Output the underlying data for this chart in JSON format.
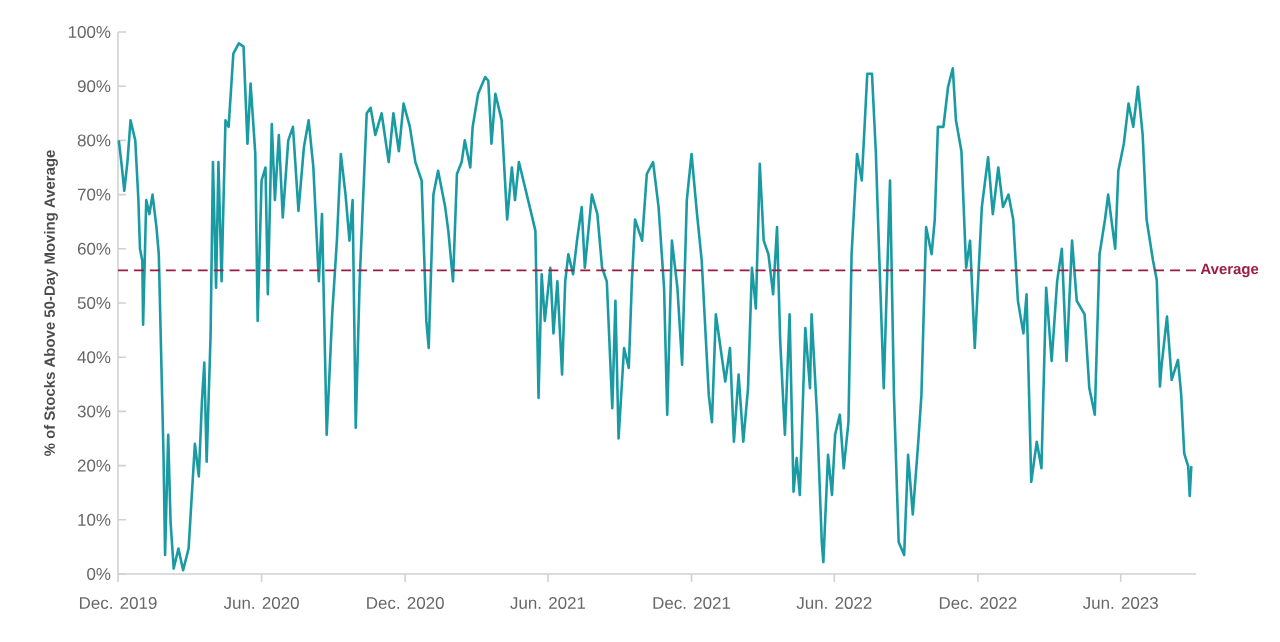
{
  "chart_data": {
    "type": "line",
    "ylabel": "% of Stocks Above 50-Day Moving Average",
    "xlim": [
      "2019-12-01",
      "2023-09-05"
    ],
    "xticks": [
      {
        "value": "2019-12-01",
        "label": "Dec. 2019"
      },
      {
        "value": "2020-06-01",
        "label": "Jun. 2020"
      },
      {
        "value": "2020-12-01",
        "label": "Dec. 2020"
      },
      {
        "value": "2021-06-01",
        "label": "Jun. 2021"
      },
      {
        "value": "2021-12-01",
        "label": "Dec. 2021"
      },
      {
        "value": "2022-06-01",
        "label": "Jun. 2022"
      },
      {
        "value": "2022-12-01",
        "label": "Dec. 2022"
      },
      {
        "value": "2023-06-01",
        "label": "Jun. 2023"
      }
    ],
    "ylim": [
      0,
      100
    ],
    "yticks": [
      {
        "value": 0,
        "label": "0%"
      },
      {
        "value": 10,
        "label": "10%"
      },
      {
        "value": 20,
        "label": "20%"
      },
      {
        "value": 30,
        "label": "30%"
      },
      {
        "value": 40,
        "label": "40%"
      },
      {
        "value": 50,
        "label": "50%"
      },
      {
        "value": 60,
        "label": "60%"
      },
      {
        "value": 70,
        "label": "70%"
      },
      {
        "value": 80,
        "label": "80%"
      },
      {
        "value": 90,
        "label": "90%"
      },
      {
        "value": 100,
        "label": "100%"
      }
    ],
    "grid": false,
    "marker": "none",
    "line_style": "solid",
    "ref_lines": [
      {
        "axis": "y",
        "value": 56,
        "label": "Average",
        "color": "#9b1b42",
        "line_style": "dashed"
      }
    ],
    "series": [
      {
        "color": "#1a9ba3",
        "x": [
          "2019-12-02",
          "2019-12-06",
          "2019-12-09",
          "2019-12-13",
          "2019-12-17",
          "2019-12-23",
          "2019-12-27",
          "2019-12-29",
          "2020-01-01",
          "2020-01-02",
          "2020-01-06",
          "2020-01-10",
          "2020-01-14",
          "2020-01-19",
          "2020-01-22",
          "2020-01-28",
          "2020-01-30",
          "2020-02-03",
          "2020-02-06",
          "2020-02-10",
          "2020-02-16",
          "2020-02-22",
          "2020-02-29",
          "2020-03-08",
          "2020-03-13",
          "2020-03-17",
          "2020-03-20",
          "2020-03-23",
          "2020-03-28",
          "2020-03-31",
          "2020-04-04",
          "2020-04-07",
          "2020-04-11",
          "2020-04-16",
          "2020-04-20",
          "2020-04-26",
          "2020-05-03",
          "2020-05-09",
          "2020-05-14",
          "2020-05-18",
          "2020-05-24",
          "2020-05-27",
          "2020-06-01",
          "2020-06-06",
          "2020-06-09",
          "2020-06-14",
          "2020-06-18",
          "2020-06-23",
          "2020-06-28",
          "2020-07-05",
          "2020-07-11",
          "2020-07-18",
          "2020-07-25",
          "2020-07-31",
          "2020-08-06",
          "2020-08-13",
          "2020-08-17",
          "2020-08-23",
          "2020-08-30",
          "2020-09-05",
          "2020-09-10",
          "2020-09-16",
          "2020-09-21",
          "2020-09-25",
          "2020-09-29",
          "2020-10-04",
          "2020-10-13",
          "2020-10-18",
          "2020-10-24",
          "2020-11-01",
          "2020-11-10",
          "2020-11-16",
          "2020-11-23",
          "2020-11-29",
          "2020-12-07",
          "2020-12-14",
          "2020-12-22",
          "2020-12-28",
          "2020-12-31",
          "2021-01-06",
          "2021-01-12",
          "2021-01-21",
          "2021-01-25",
          "2021-01-31",
          "2021-02-05",
          "2021-02-11",
          "2021-02-15",
          "2021-02-22",
          "2021-02-25",
          "2021-03-04",
          "2021-03-13",
          "2021-03-17",
          "2021-03-21",
          "2021-03-26",
          "2021-04-03",
          "2021-04-10",
          "2021-04-16",
          "2021-04-20",
          "2021-04-25",
          "2021-05-05",
          "2021-05-11",
          "2021-05-16",
          "2021-05-20",
          "2021-05-24",
          "2021-05-28",
          "2021-06-04",
          "2021-06-08",
          "2021-06-13",
          "2021-06-19",
          "2021-06-23",
          "2021-06-27",
          "2021-07-03",
          "2021-07-08",
          "2021-07-14",
          "2021-07-18",
          "2021-07-27",
          "2021-08-03",
          "2021-08-09",
          "2021-08-15",
          "2021-08-22",
          "2021-08-26",
          "2021-08-30",
          "2021-09-06",
          "2021-09-12",
          "2021-09-16",
          "2021-09-20",
          "2021-09-29",
          "2021-10-05",
          "2021-10-13",
          "2021-10-20",
          "2021-10-27",
          "2021-10-31",
          "2021-11-06",
          "2021-11-13",
          "2021-11-19",
          "2021-11-25",
          "2021-12-01",
          "2021-12-08",
          "2021-12-14",
          "2021-12-23",
          "2021-12-27",
          "2022-01-01",
          "2022-01-07",
          "2022-01-13",
          "2022-01-19",
          "2022-01-24",
          "2022-01-30",
          "2022-02-05",
          "2022-02-11",
          "2022-02-16",
          "2022-02-21",
          "2022-02-26",
          "2022-03-03",
          "2022-03-09",
          "2022-03-15",
          "2022-03-20",
          "2022-03-24",
          "2022-03-30",
          "2022-04-05",
          "2022-04-10",
          "2022-04-14",
          "2022-04-18",
          "2022-04-25",
          "2022-05-01",
          "2022-05-03",
          "2022-05-10",
          "2022-05-16",
          "2022-05-18",
          "2022-05-24",
          "2022-05-29",
          "2022-06-02",
          "2022-06-08",
          "2022-06-13",
          "2022-06-19",
          "2022-06-23",
          "2022-06-30",
          "2022-07-06",
          "2022-07-13",
          "2022-07-19",
          "2022-07-24",
          "2022-07-27",
          "2022-08-03",
          "2022-08-11",
          "2022-08-16",
          "2022-08-22",
          "2022-08-29",
          "2022-09-03",
          "2022-09-09",
          "2022-09-16",
          "2022-09-20",
          "2022-09-26",
          "2022-10-03",
          "2022-10-07",
          "2022-10-11",
          "2022-10-18",
          "2022-10-24",
          "2022-10-30",
          "2022-11-03",
          "2022-11-10",
          "2022-11-16",
          "2022-11-21",
          "2022-11-27",
          "2022-12-06",
          "2022-12-14",
          "2022-12-20",
          "2022-12-27",
          "2023-01-02",
          "2023-01-09",
          "2023-01-15",
          "2023-01-21",
          "2023-01-28",
          "2023-02-01",
          "2023-02-07",
          "2023-02-14",
          "2023-02-20",
          "2023-02-26",
          "2023-03-05",
          "2023-03-12",
          "2023-03-18",
          "2023-03-24",
          "2023-03-31",
          "2023-04-06",
          "2023-04-16",
          "2023-04-22",
          "2023-04-29",
          "2023-05-05",
          "2023-05-12",
          "2023-05-16",
          "2023-05-25",
          "2023-05-29",
          "2023-06-05",
          "2023-06-11",
          "2023-06-17",
          "2023-06-23",
          "2023-06-29",
          "2023-07-04",
          "2023-07-12",
          "2023-07-17",
          "2023-07-19",
          "2023-07-21",
          "2023-07-23",
          "2023-07-30",
          "2023-08-05",
          "2023-08-13",
          "2023-08-17",
          "2023-08-21",
          "2023-08-26",
          "2023-08-28",
          "2023-08-30"
        ],
        "values": [
          80,
          75,
          70.7,
          76,
          83.7,
          80,
          69,
          60,
          57.8,
          46,
          69,
          66.4,
          70,
          64,
          59,
          22,
          3.5,
          25.7,
          9.6,
          1,
          4.7,
          0.7,
          4.7,
          24,
          18,
          31.9,
          39,
          20.7,
          44,
          76,
          52.8,
          76,
          54,
          83.7,
          82.5,
          96,
          97.9,
          97.3,
          79.4,
          90.5,
          77.5,
          46.7,
          72.6,
          75,
          51.6,
          83,
          69,
          81,
          65.8,
          80,
          82.5,
          67,
          78.8,
          83.7,
          75,
          54,
          66.4,
          25.7,
          47.9,
          61.5,
          77.5,
          70,
          61.5,
          69,
          27,
          54,
          85,
          86,
          81,
          85,
          76,
          85,
          78,
          86.8,
          82.5,
          76,
          72.6,
          46.7,
          41.7,
          70,
          74.4,
          67.7,
          63.3,
          54,
          73.8,
          76,
          80,
          75,
          82.5,
          88.6,
          91.7,
          91,
          79.4,
          88.6,
          83.7,
          65.4,
          75,
          69,
          76,
          70,
          66.4,
          63.3,
          32.5,
          55.3,
          46.7,
          56.5,
          44.4,
          54,
          36.8,
          54,
          59,
          55.3,
          61.5,
          67.7,
          56.5,
          70,
          66.4,
          56.5,
          54,
          30.6,
          50.4,
          25,
          41.7,
          38,
          54,
          65.4,
          61.5,
          73.8,
          76,
          67.7,
          52.8,
          29.4,
          61.5,
          52.8,
          38.6,
          69,
          77.5,
          66.4,
          57.8,
          33,
          28,
          47.9,
          41.7,
          35.5,
          41.7,
          24.4,
          36.8,
          24.4,
          34.3,
          56.5,
          49,
          75.7,
          61.5,
          59,
          51.6,
          64,
          43,
          25.7,
          47.9,
          15.2,
          21.4,
          14.6,
          45.4,
          34.3,
          47.9,
          29.4,
          5.9,
          2.2,
          22,
          14.6,
          25.7,
          29.4,
          19.5,
          28,
          59,
          77.5,
          72.6,
          92.3,
          92.3,
          77.5,
          64,
          34.3,
          72.6,
          33,
          5.9,
          3.5,
          22,
          11,
          24.4,
          33,
          64,
          59,
          65.4,
          82.5,
          82.5,
          89.9,
          93.3,
          83.7,
          78,
          56.5,
          61.5,
          41.7,
          67.7,
          76.9,
          66.4,
          75,
          67.7,
          70,
          65.4,
          50.4,
          44.4,
          51.6,
          17,
          24.4,
          19.5,
          52.8,
          39.3,
          54,
          60,
          39.3,
          61.5,
          50.4,
          47.9,
          34.3,
          29.4,
          59,
          65.4,
          70,
          60,
          74.4,
          79.4,
          86.8,
          82.5,
          89.9,
          81,
          65.4,
          58,
          54.2,
          44.4,
          34.6,
          38.3,
          47.5,
          35.8,
          39.5,
          33.3,
          22.2,
          19.9,
          14.4,
          19.9
        ]
      }
    ]
  }
}
